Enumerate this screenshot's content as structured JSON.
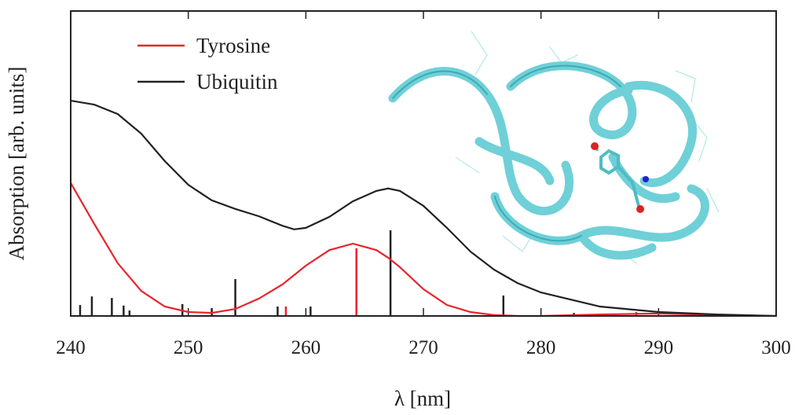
{
  "chart_data": {
    "type": "line",
    "xlabel": "λ [nm]",
    "ylabel": "Absorption [arb. units]",
    "x": [
      240,
      242,
      244,
      246,
      248,
      250,
      252,
      254,
      256,
      258,
      259,
      260,
      262,
      264,
      266,
      267,
      268,
      270,
      272,
      274,
      276,
      278,
      280,
      285,
      290,
      295,
      300
    ],
    "series": [
      {
        "name": "Tyrosine",
        "color": "#e8242b",
        "values": [
          0.436,
          0.302,
          0.173,
          0.082,
          0.031,
          0.013,
          0.01,
          0.023,
          0.057,
          0.103,
          0.134,
          0.165,
          0.216,
          0.237,
          0.216,
          0.191,
          0.16,
          0.088,
          0.036,
          0.013,
          0.003,
          0,
          0,
          0.005,
          0.008,
          0.003,
          0
        ]
      },
      {
        "name": "Ubiquitin",
        "color": "#222222",
        "values": [
          0.706,
          0.693,
          0.662,
          0.598,
          0.508,
          0.43,
          0.379,
          0.351,
          0.327,
          0.296,
          0.284,
          0.289,
          0.325,
          0.376,
          0.41,
          0.418,
          0.41,
          0.361,
          0.289,
          0.211,
          0.152,
          0.108,
          0.077,
          0.031,
          0.013,
          0.005,
          0
        ]
      }
    ],
    "sticks": [
      {
        "color": "#222222",
        "x": [
          240.8,
          241.8,
          243.5,
          244.5,
          245,
          249.5,
          252,
          254,
          257.6,
          260.4,
          267.2,
          276.8,
          282.8
        ],
        "values": [
          0.036,
          0.064,
          0.059,
          0.034,
          0.018,
          0.039,
          0.026,
          0.121,
          0.031,
          0.031,
          0.281,
          0.067,
          0.01
        ]
      },
      {
        "color": "#e8242b",
        "x": [
          258.3,
          264.3,
          288.1
        ],
        "values": [
          0.031,
          0.222,
          0.013
        ]
      }
    ],
    "xlim": [
      240,
      300
    ],
    "xticks": [
      240,
      250,
      260,
      270,
      280,
      290,
      300
    ],
    "ylim": [
      0,
      1
    ],
    "legend": "upper-left"
  }
}
